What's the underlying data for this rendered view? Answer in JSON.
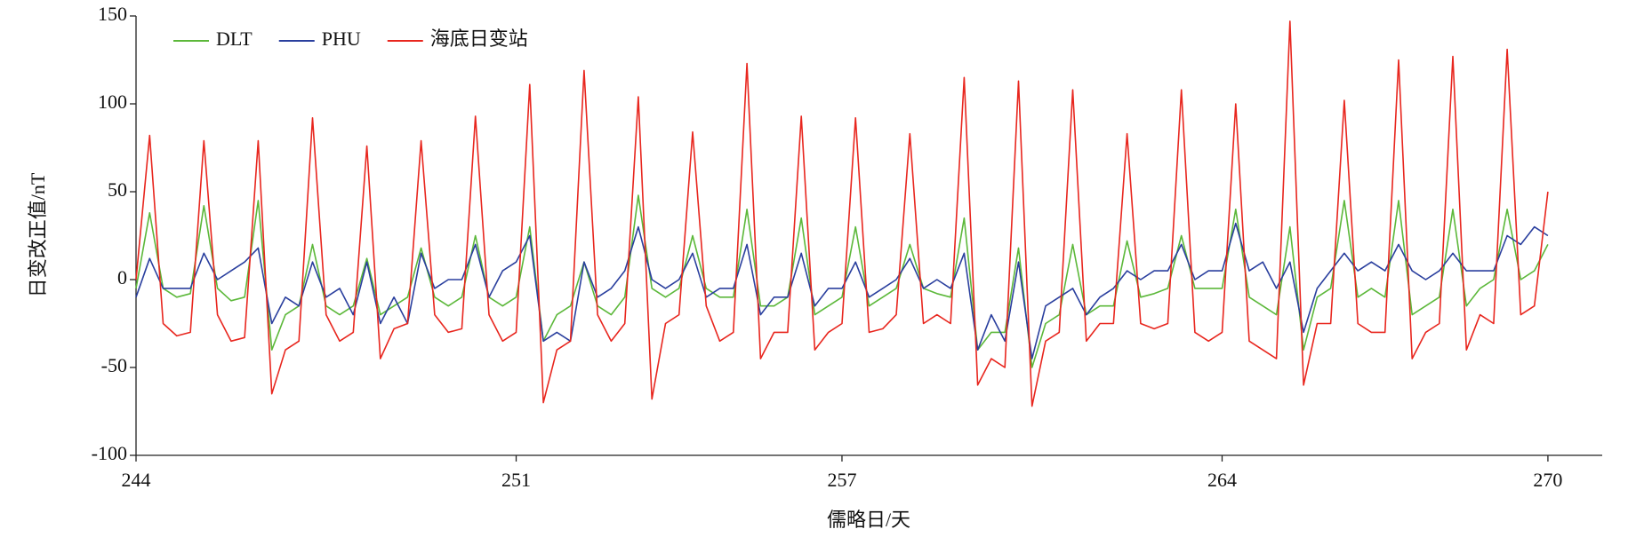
{
  "chart_data": {
    "type": "line",
    "x_label": "儒略日/天",
    "y_label": "日变改正值/nT",
    "x": [
      244,
      244.25,
      244.5,
      244.75,
      245,
      245.25,
      245.5,
      245.75,
      246,
      246.25,
      246.5,
      246.75,
      247,
      247.25,
      247.5,
      247.75,
      248,
      248.25,
      248.5,
      248.75,
      249,
      249.25,
      249.5,
      249.75,
      250,
      250.25,
      250.5,
      250.75,
      251,
      251.25,
      251.5,
      251.75,
      252,
      252.25,
      252.5,
      252.75,
      253,
      253.25,
      253.5,
      253.75,
      254,
      254.25,
      254.5,
      254.75,
      255,
      255.25,
      255.5,
      255.75,
      256,
      256.25,
      256.5,
      256.75,
      257,
      257.25,
      257.5,
      257.75,
      258,
      258.25,
      258.5,
      258.75,
      259,
      259.25,
      259.5,
      259.75,
      260,
      260.25,
      260.5,
      260.75,
      261,
      261.25,
      261.5,
      261.75,
      262,
      262.25,
      262.5,
      262.75,
      263,
      263.25,
      263.5,
      263.75,
      264,
      264.25,
      264.5,
      264.75,
      265,
      265.25,
      265.5,
      265.75,
      266,
      266.25,
      266.5,
      266.75,
      267,
      267.25,
      267.5,
      267.75,
      268,
      268.25,
      268.5,
      268.75,
      269,
      269.25,
      269.5,
      269.75,
      270
    ],
    "series": [
      {
        "name": "DLT",
        "color": "#5cb83a",
        "values": [
          -5,
          38,
          -5,
          -10,
          -8,
          42,
          -5,
          -12,
          -10,
          45,
          -40,
          -20,
          -15,
          20,
          -15,
          -20,
          -15,
          12,
          -20,
          -15,
          -10,
          18,
          -10,
          -15,
          -10,
          25,
          -10,
          -15,
          -10,
          30,
          -35,
          -20,
          -15,
          10,
          -15,
          -20,
          -10,
          48,
          -5,
          -10,
          -5,
          25,
          -5,
          -10,
          -10,
          40,
          -15,
          -15,
          -10,
          35,
          -20,
          -15,
          -10,
          30,
          -15,
          -10,
          -5,
          20,
          -5,
          -8,
          -10,
          35,
          -40,
          -30,
          -30,
          18,
          -50,
          -25,
          -20,
          20,
          -20,
          -15,
          -15,
          22,
          -10,
          -8,
          -5,
          25,
          -5,
          -5,
          -5,
          40,
          -10,
          -15,
          -20,
          30,
          -40,
          -10,
          -5,
          45,
          -10,
          -5,
          -10,
          45,
          -20,
          -15,
          -10,
          40,
          -15,
          -5,
          0,
          40,
          0,
          5,
          20
        ]
      },
      {
        "name": "PHU",
        "color": "#2a3f9e",
        "values": [
          -10,
          12,
          -5,
          -5,
          -5,
          15,
          0,
          5,
          10,
          18,
          -25,
          -10,
          -15,
          10,
          -10,
          -5,
          -20,
          10,
          -25,
          -10,
          -25,
          15,
          -5,
          0,
          0,
          20,
          -10,
          5,
          10,
          25,
          -35,
          -30,
          -35,
          10,
          -10,
          -5,
          5,
          30,
          0,
          -5,
          0,
          15,
          -10,
          -5,
          -5,
          20,
          -20,
          -10,
          -10,
          15,
          -15,
          -5,
          -5,
          10,
          -10,
          -5,
          0,
          12,
          -5,
          0,
          -5,
          15,
          -40,
          -20,
          -35,
          10,
          -45,
          -15,
          -10,
          -5,
          -20,
          -10,
          -5,
          5,
          0,
          5,
          5,
          20,
          0,
          5,
          5,
          32,
          5,
          10,
          -5,
          10,
          -30,
          -5,
          5,
          15,
          5,
          10,
          5,
          20,
          5,
          0,
          5,
          15,
          5,
          5,
          5,
          25,
          20,
          30,
          25
        ]
      },
      {
        "name": "海底日变站",
        "color": "#e8261e",
        "values": [
          0,
          82,
          -25,
          -32,
          -30,
          79,
          -20,
          -35,
          -33,
          79,
          -65,
          -40,
          -35,
          92,
          -20,
          -35,
          -30,
          76,
          -45,
          -28,
          -25,
          79,
          -20,
          -30,
          -28,
          93,
          -20,
          -35,
          -30,
          111,
          -70,
          -40,
          -35,
          119,
          -20,
          -35,
          -25,
          104,
          -68,
          -25,
          -20,
          84,
          -15,
          -35,
          -30,
          123,
          -45,
          -30,
          -30,
          93,
          -40,
          -30,
          -25,
          92,
          -30,
          -28,
          -20,
          83,
          -25,
          -20,
          -25,
          115,
          -60,
          -45,
          -50,
          113,
          -72,
          -35,
          -30,
          108,
          -35,
          -25,
          -25,
          83,
          -25,
          -28,
          -25,
          108,
          -30,
          -35,
          -30,
          100,
          -35,
          -40,
          -45,
          147,
          -60,
          -25,
          -25,
          102,
          -25,
          -30,
          -30,
          125,
          -45,
          -30,
          -25,
          127,
          -40,
          -20,
          -25,
          131,
          -20,
          -15,
          50
        ]
      }
    ],
    "xlim": [
      244,
      271
    ],
    "xticks": [
      244,
      251,
      257,
      264,
      270
    ],
    "ylim": [
      -100,
      150
    ],
    "yticks": [
      -100,
      -50,
      0,
      50,
      100,
      150
    ],
    "grid": false,
    "legend": "upper left"
  }
}
